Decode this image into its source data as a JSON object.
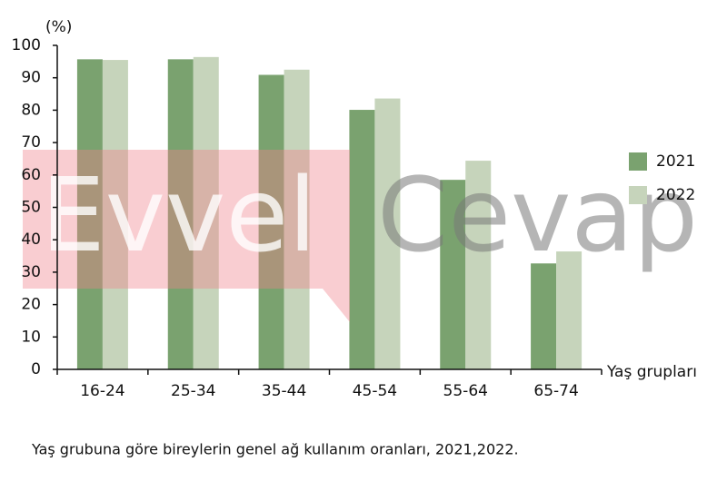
{
  "chart_data": {
    "type": "bar",
    "caption": "Yaş grubuna göre bireylerin genel ağ kullanım oranları, 2021,2022.",
    "y_label": "(%)",
    "x_label": "Yaş grupları",
    "watermark": [
      "Evvel",
      "Cevap"
    ],
    "categories": [
      "16-24",
      "25-34",
      "35-44",
      "45-54",
      "55-64",
      "65-74"
    ],
    "series": [
      {
        "name": "2021",
        "color": "#7aa26f",
        "values": [
          95.7,
          95.7,
          90.9,
          80.1,
          58.5,
          32.7
        ]
      },
      {
        "name": "2022",
        "color": "#c6d4bb",
        "values": [
          95.5,
          96.4,
          92.5,
          83.6,
          64.4,
          36.4
        ]
      }
    ],
    "ylim": [
      0,
      100
    ],
    "yticks": [
      0,
      10,
      20,
      30,
      40,
      50,
      60,
      70,
      80,
      90,
      100
    ],
    "grid": false,
    "legend": "right"
  }
}
